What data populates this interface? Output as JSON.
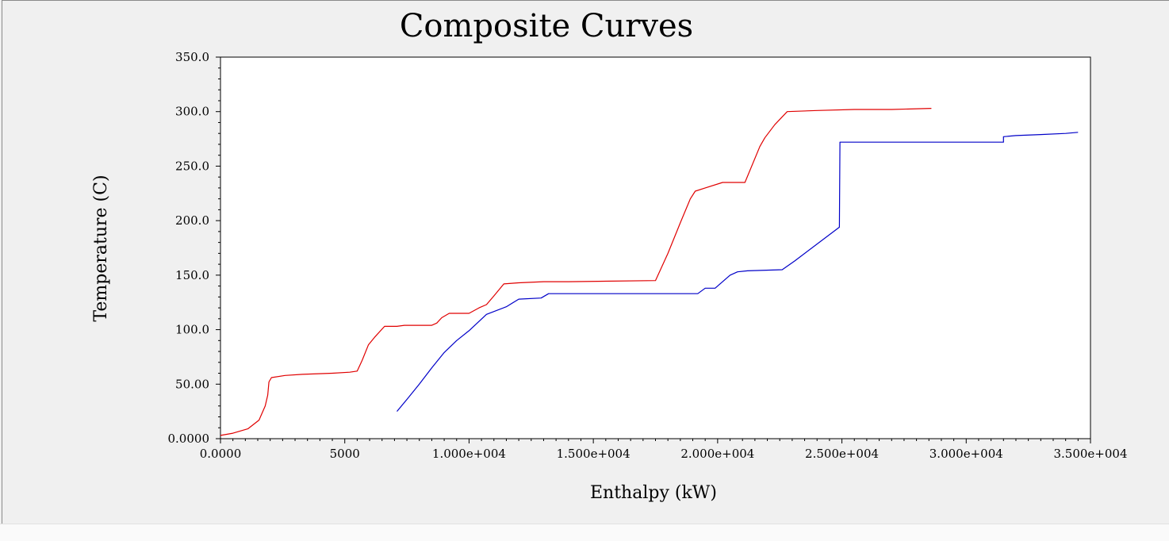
{
  "chart_data": {
    "type": "line",
    "title": "Composite Curves",
    "xlabel": "Enthalpy (kW)",
    "ylabel": "Temperature (C)",
    "xlim": [
      0,
      35000
    ],
    "ylim": [
      0,
      350
    ],
    "x_ticks": [
      {
        "value": 0,
        "label": "0.0000"
      },
      {
        "value": 5000,
        "label": "5000"
      },
      {
        "value": 10000,
        "label": "1.000e+004"
      },
      {
        "value": 15000,
        "label": "1.500e+004"
      },
      {
        "value": 20000,
        "label": "2.000e+004"
      },
      {
        "value": 25000,
        "label": "2.500e+004"
      },
      {
        "value": 30000,
        "label": "3.000e+004"
      },
      {
        "value": 35000,
        "label": "3.500e+004"
      }
    ],
    "y_ticks": [
      {
        "value": 0,
        "label": "0.0000"
      },
      {
        "value": 50,
        "label": "50.00"
      },
      {
        "value": 100,
        "label": "100.0"
      },
      {
        "value": 150,
        "label": "150.0"
      },
      {
        "value": 200,
        "label": "200.0"
      },
      {
        "value": 250,
        "label": "250.0"
      },
      {
        "value": 300,
        "label": "300.0"
      },
      {
        "value": 350,
        "label": "350.0"
      }
    ],
    "grid": false,
    "series": [
      {
        "color": "#e00000",
        "points": [
          [
            0,
            3
          ],
          [
            500,
            5
          ],
          [
            1100,
            9
          ],
          [
            1550,
            17
          ],
          [
            1800,
            30
          ],
          [
            1900,
            40
          ],
          [
            1950,
            52
          ],
          [
            2050,
            56
          ],
          [
            2600,
            58
          ],
          [
            3300,
            59
          ],
          [
            4500,
            60
          ],
          [
            5200,
            61
          ],
          [
            5500,
            62
          ],
          [
            5700,
            72
          ],
          [
            5950,
            86
          ],
          [
            6200,
            93
          ],
          [
            6600,
            103
          ],
          [
            7100,
            103
          ],
          [
            7400,
            104
          ],
          [
            8500,
            104
          ],
          [
            8700,
            106
          ],
          [
            8900,
            111
          ],
          [
            9200,
            115
          ],
          [
            10000,
            115
          ],
          [
            10400,
            120
          ],
          [
            10700,
            123
          ],
          [
            11000,
            131
          ],
          [
            11400,
            142
          ],
          [
            12000,
            143
          ],
          [
            13000,
            144
          ],
          [
            14000,
            144
          ],
          [
            17500,
            145
          ],
          [
            18000,
            170
          ],
          [
            18500,
            198
          ],
          [
            18900,
            220
          ],
          [
            19100,
            227
          ],
          [
            19500,
            230
          ],
          [
            20200,
            235
          ],
          [
            21100,
            235
          ],
          [
            21700,
            268
          ],
          [
            21900,
            276
          ],
          [
            22300,
            288
          ],
          [
            22800,
            300
          ],
          [
            24000,
            301
          ],
          [
            25500,
            302
          ],
          [
            27000,
            302
          ],
          [
            28600,
            303
          ]
        ]
      },
      {
        "color": "#0000c8",
        "points": [
          [
            7100,
            25
          ],
          [
            7500,
            36
          ],
          [
            8000,
            50
          ],
          [
            8500,
            65
          ],
          [
            9000,
            79
          ],
          [
            9500,
            90
          ],
          [
            10000,
            99
          ],
          [
            10700,
            114
          ],
          [
            11500,
            121
          ],
          [
            12000,
            128
          ],
          [
            12900,
            129
          ],
          [
            13200,
            133
          ],
          [
            14000,
            133
          ],
          [
            19200,
            133
          ],
          [
            19500,
            138
          ],
          [
            19900,
            138
          ],
          [
            20500,
            150
          ],
          [
            20800,
            153
          ],
          [
            21200,
            154
          ],
          [
            22600,
            155
          ],
          [
            23100,
            163
          ],
          [
            24900,
            194
          ],
          [
            24920,
            272
          ],
          [
            31500,
            272
          ],
          [
            31500,
            277
          ],
          [
            32000,
            278
          ],
          [
            33000,
            279
          ],
          [
            34000,
            280
          ],
          [
            34500,
            281
          ]
        ]
      }
    ]
  }
}
